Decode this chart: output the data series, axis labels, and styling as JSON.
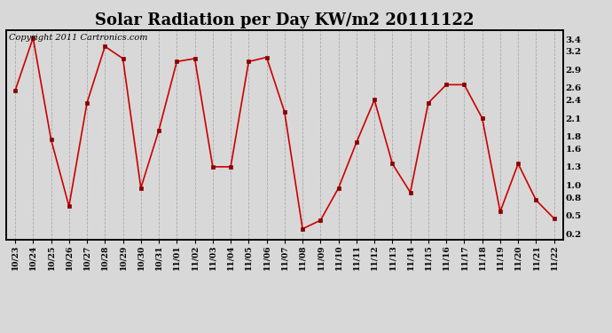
{
  "title": "Solar Radiation per Day KW/m2 20111122",
  "copyright_text": "Copyright 2011 Cartronics.com",
  "labels": [
    "10/23",
    "10/24",
    "10/25",
    "10/26",
    "10/27",
    "10/28",
    "10/29",
    "10/30",
    "10/31",
    "11/01",
    "11/02",
    "11/03",
    "11/04",
    "11/05",
    "11/06",
    "11/07",
    "11/08",
    "11/09",
    "11/10",
    "11/11",
    "11/12",
    "11/13",
    "11/14",
    "11/15",
    "11/16",
    "11/17",
    "11/18",
    "11/19",
    "11/20",
    "11/21",
    "11/22"
  ],
  "data_values": [
    2.55,
    3.42,
    1.75,
    0.65,
    2.35,
    3.28,
    3.08,
    0.95,
    1.9,
    3.03,
    3.08,
    1.3,
    1.3,
    3.03,
    3.1,
    2.2,
    0.28,
    0.42,
    0.95,
    1.7,
    2.4,
    1.35,
    0.88,
    2.35,
    2.65,
    2.65,
    2.1,
    0.56,
    1.35,
    0.75,
    0.45
  ],
  "yticks": [
    0.2,
    0.5,
    0.8,
    1.0,
    1.3,
    1.6,
    1.8,
    2.1,
    2.4,
    2.6,
    2.9,
    3.2,
    3.4
  ],
  "ylim": [
    0.1,
    3.55
  ],
  "line_color": "#cc0000",
  "marker_color": "#880000",
  "bg_color": "#d8d8d8",
  "grid_color": "#aaaaaa",
  "title_fontsize": 13,
  "copyright_fontsize": 7
}
